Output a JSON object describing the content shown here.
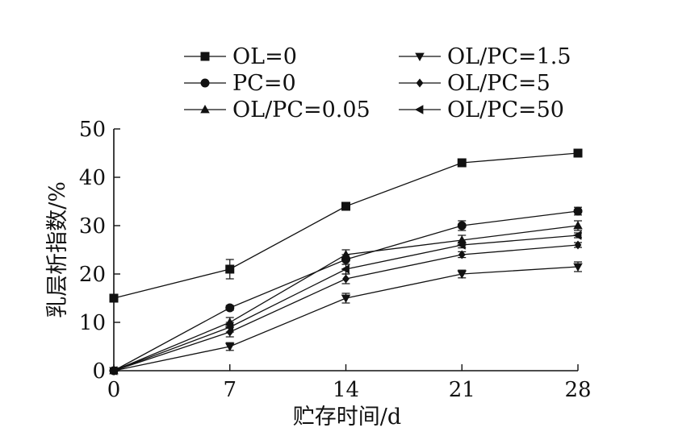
{
  "chart_data": {
    "type": "line",
    "xlabel": "贮存时间/d",
    "ylabel": "乳层析指数/%",
    "x": [
      0,
      7,
      14,
      21,
      28
    ],
    "xlim": [
      0,
      28
    ],
    "ylim": [
      0,
      50
    ],
    "xticks": [
      "0",
      "7",
      "14",
      "21",
      "28"
    ],
    "yticks": [
      "0",
      "10",
      "20",
      "30",
      "40",
      "50"
    ],
    "grid": false,
    "legend_position": "top",
    "series": [
      {
        "name": "OL=0",
        "marker": "square",
        "values": [
          15,
          21,
          34,
          43,
          45
        ],
        "errors": [
          0.5,
          2,
          0.6,
          0.8,
          0.5
        ]
      },
      {
        "name": "PC=0",
        "marker": "circle",
        "values": [
          0,
          13,
          23,
          30,
          33
        ],
        "errors": [
          0.5,
          0.5,
          1,
          1,
          0.8
        ]
      },
      {
        "name": "OL/PC=0.05",
        "marker": "triangle-up",
        "values": [
          0,
          10,
          24,
          27,
          30
        ],
        "errors": [
          0.5,
          1,
          1,
          1,
          1
        ]
      },
      {
        "name": "OL/PC=1.5",
        "marker": "triangle-down",
        "values": [
          0,
          5,
          15,
          20,
          21.5
        ],
        "errors": [
          0.5,
          0.8,
          1,
          0.8,
          1
        ]
      },
      {
        "name": "OL/PC=5",
        "marker": "diamond",
        "values": [
          0,
          8,
          19,
          24,
          26
        ],
        "errors": [
          0.5,
          1,
          1,
          0.6,
          0.5
        ]
      },
      {
        "name": "OL/PC=50",
        "marker": "triangle-left",
        "values": [
          0,
          9,
          21,
          26,
          28
        ],
        "errors": [
          0.5,
          1,
          1,
          0.6,
          0.5
        ]
      }
    ]
  }
}
